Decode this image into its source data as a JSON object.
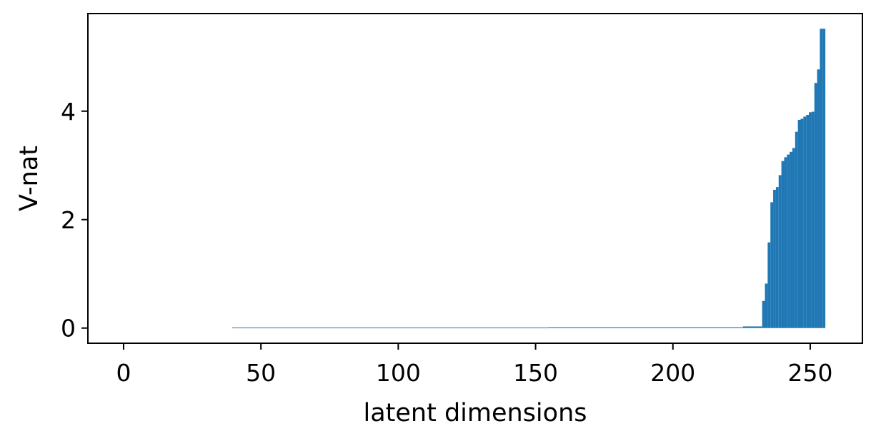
{
  "chart_data": {
    "type": "bar",
    "xlabel": "latent dimensions",
    "ylabel": "V-nat",
    "xlim": [
      -13,
      269
    ],
    "ylim": [
      -0.28,
      5.8
    ],
    "xticks": [
      0,
      50,
      100,
      150,
      200,
      250
    ],
    "yticks": [
      0,
      2,
      4
    ],
    "grid": false,
    "color": "#1f77b4",
    "x": [
      40,
      155,
      226,
      233,
      234,
      235,
      236,
      237,
      238,
      239,
      240,
      241,
      242,
      243,
      244,
      245,
      246,
      247,
      248,
      249,
      250,
      251,
      252,
      253,
      254,
      255
    ],
    "values": [
      0.01,
      0.015,
      0.03,
      0.5,
      0.82,
      1.58,
      2.32,
      2.55,
      2.6,
      2.82,
      3.08,
      3.15,
      3.2,
      3.25,
      3.32,
      3.62,
      3.84,
      3.86,
      3.9,
      3.93,
      3.98,
      3.99,
      4.52,
      4.77,
      5.52,
      5.52
    ],
    "widths": [
      115,
      71,
      7,
      1,
      1,
      1,
      1,
      1,
      1,
      1,
      1,
      1,
      1,
      1,
      1,
      1,
      1,
      1,
      1,
      1,
      1,
      1,
      1,
      1,
      1,
      1
    ]
  }
}
